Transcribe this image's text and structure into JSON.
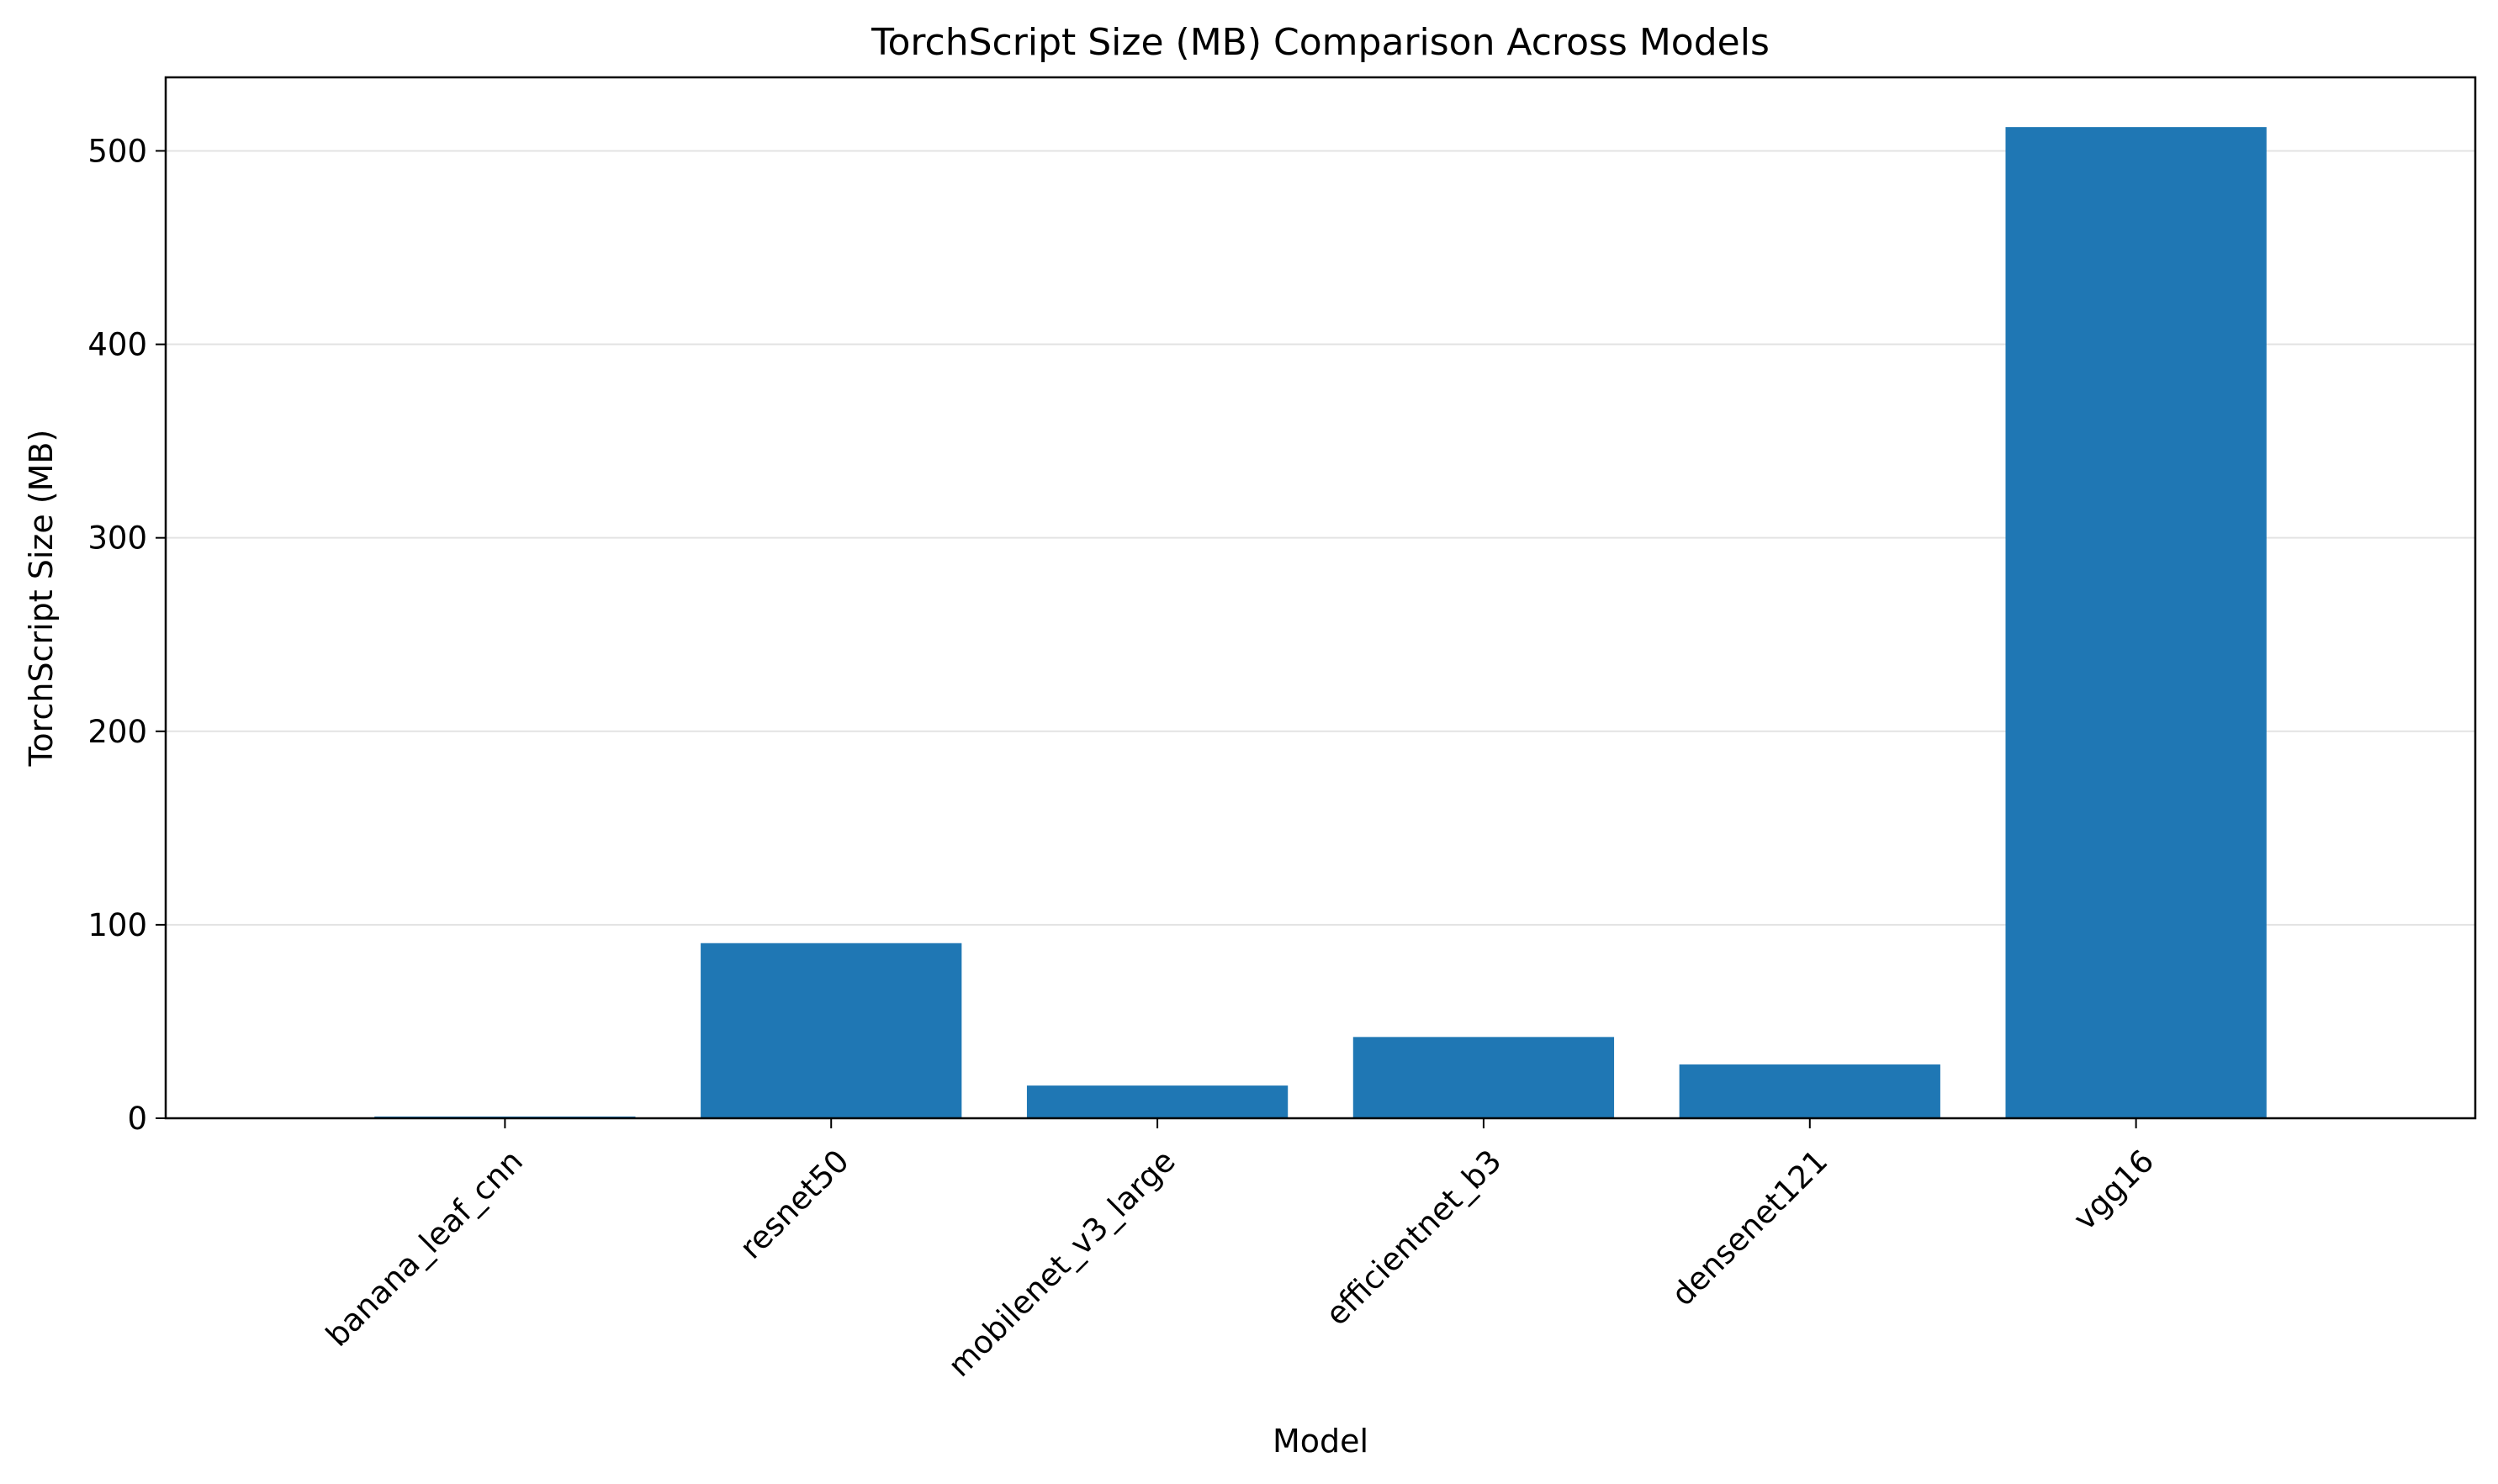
{
  "chart_data": {
    "type": "bar",
    "title": "TorchScript Size (MB) Comparison Across Models",
    "xlabel": "Model",
    "ylabel": "TorchScript Size (MB)",
    "categories": [
      "banana_leaf_cnn",
      "resnet50",
      "mobilenet_v3_large",
      "efficientnet_b3",
      "densenet121",
      "vgg16"
    ],
    "values": [
      0.9,
      90.5,
      16.9,
      42.0,
      27.8,
      512.3
    ],
    "ylim": [
      0,
      538
    ],
    "yticks": [
      0,
      100,
      200,
      300,
      400,
      500
    ],
    "ytick_labels": [
      "0",
      "100",
      "200",
      "300",
      "400",
      "500"
    ],
    "grid": "horizontal",
    "legend": "none",
    "bar_color": "#1f77b4"
  }
}
